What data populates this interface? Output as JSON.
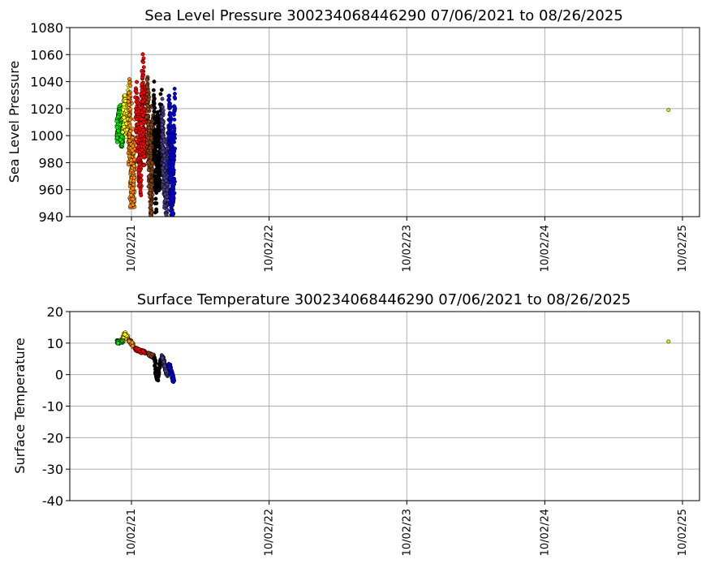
{
  "chart_data": [
    {
      "type": "scatter",
      "title": "Sea Level Pressure 300234068446290  07/06/2021 to 08/26/2025",
      "ylabel": "Sea Level Pressure",
      "xlabel": "",
      "ylim": [
        940,
        1080
      ],
      "yticks": [
        940,
        960,
        980,
        1000,
        1020,
        1040,
        1060,
        1080
      ],
      "xlim": [
        "2021-07-06",
        "2025-08-26"
      ],
      "xticks": [
        "2021-10-02",
        "2022-10-02",
        "2023-10-02",
        "2024-10-02",
        "2025-10-02"
      ],
      "xtick_labels": [
        "10/02/21",
        "10/02/22",
        "10/02/23",
        "10/02/24",
        "10/02/25"
      ],
      "grid": true,
      "series": [
        {
          "color": "#00ee00",
          "x": [
            "2021-08-25",
            "2021-08-29",
            "2021-09-02",
            "2021-09-06",
            "2021-09-09"
          ],
          "y": [
            1003,
            1010,
            1016,
            998,
            1006
          ]
        },
        {
          "color": "#ffff00",
          "x": [
            "2021-09-10",
            "2021-09-15",
            "2021-09-20",
            "2021-09-24"
          ],
          "y": [
            1012,
            1022,
            1008,
            1030
          ]
        },
        {
          "color": "#ff8c00",
          "x": [
            "2021-09-25",
            "2021-09-28",
            "2021-10-01",
            "2021-10-03",
            "2021-10-06",
            "2021-10-10",
            "2021-09-29",
            "2021-09-30"
          ],
          "y": [
            1000,
            1018,
            990,
            1024,
            1005,
            1012,
            965,
            973
          ]
        },
        {
          "color": "#ff0000",
          "x": [
            "2021-10-14",
            "2021-10-20",
            "2021-10-26",
            "2021-11-01",
            "2021-11-05",
            "2021-11-09"
          ],
          "y": [
            1020,
            995,
            975,
            1035,
            1002,
            1015
          ]
        },
        {
          "color": "#8b4513",
          "x": [
            "2021-11-12",
            "2021-11-18",
            "2021-11-24",
            "2021-11-29"
          ],
          "y": [
            1028,
            985,
            965,
            1012
          ]
        },
        {
          "color": "#000000",
          "x": [
            "2021-12-01",
            "2021-12-05",
            "2021-12-10",
            "2021-12-15",
            "2021-12-20"
          ],
          "y": [
            1018,
            962,
            1000,
            980,
            1012
          ]
        },
        {
          "color": "#483d8b",
          "x": [
            "2021-12-22",
            "2021-12-28",
            "2022-01-03",
            "2022-01-08"
          ],
          "y": [
            1008,
            970,
            958,
            990
          ]
        },
        {
          "color": "#0000ee",
          "x": [
            "2022-01-10",
            "2022-01-15",
            "2022-01-20",
            "2022-01-24"
          ],
          "y": [
            1000,
            975,
            942,
            1018
          ]
        },
        {
          "color": "#ccee00",
          "x": [
            "2025-08-26"
          ],
          "y": [
            1019
          ]
        }
      ]
    },
    {
      "type": "scatter",
      "title": "Surface Temperature 300234068446290  07/06/2021 to 08/26/2025",
      "ylabel": "Surface Temperature",
      "xlabel": "",
      "ylim": [
        -40,
        20
      ],
      "yticks": [
        -40,
        -30,
        -20,
        -10,
        0,
        10,
        20
      ],
      "xlim": [
        "2021-07-06",
        "2025-08-26"
      ],
      "xticks": [
        "2021-10-02",
        "2022-10-02",
        "2023-10-02",
        "2024-10-02",
        "2025-10-02"
      ],
      "xtick_labels": [
        "10/02/21",
        "10/02/22",
        "10/02/23",
        "10/02/24",
        "10/02/25"
      ],
      "grid": true,
      "series": [
        {
          "color": "#00ee00",
          "x": [
            "2021-08-25",
            "2021-08-30",
            "2021-09-04",
            "2021-09-09"
          ],
          "y": [
            10.5,
            10.2,
            10.8,
            10.5
          ]
        },
        {
          "color": "#ffff00",
          "x": [
            "2021-09-10",
            "2021-09-14",
            "2021-09-18",
            "2021-09-22"
          ],
          "y": [
            11.5,
            13.0,
            12.0,
            11.8
          ]
        },
        {
          "color": "#ff8c00",
          "x": [
            "2021-09-25",
            "2021-10-01",
            "2021-10-07"
          ],
          "y": [
            11.0,
            10.2,
            9.0
          ]
        },
        {
          "color": "#ff0000",
          "x": [
            "2021-10-12",
            "2021-10-25",
            "2021-11-08"
          ],
          "y": [
            8.2,
            7.5,
            7.0
          ]
        },
        {
          "color": "#8b4513",
          "x": [
            "2021-11-15",
            "2021-11-25",
            "2021-11-30"
          ],
          "y": [
            6.5,
            6.0,
            5.8
          ]
        },
        {
          "color": "#000000",
          "x": [
            "2021-12-02",
            "2021-12-06",
            "2021-12-10",
            "2021-12-16",
            "2021-12-20"
          ],
          "y": [
            5.5,
            1.0,
            -1.5,
            3.0,
            5.0
          ]
        },
        {
          "color": "#483d8b",
          "x": [
            "2021-12-22",
            "2021-12-28",
            "2022-01-04"
          ],
          "y": [
            5.8,
            3.5,
            0.0
          ]
        },
        {
          "color": "#0000ee",
          "x": [
            "2022-01-10",
            "2022-01-16",
            "2022-01-22"
          ],
          "y": [
            3.0,
            0.5,
            -2.0
          ]
        },
        {
          "color": "#ccee00",
          "x": [
            "2025-08-26"
          ],
          "y": [
            10.5
          ]
        }
      ]
    }
  ]
}
